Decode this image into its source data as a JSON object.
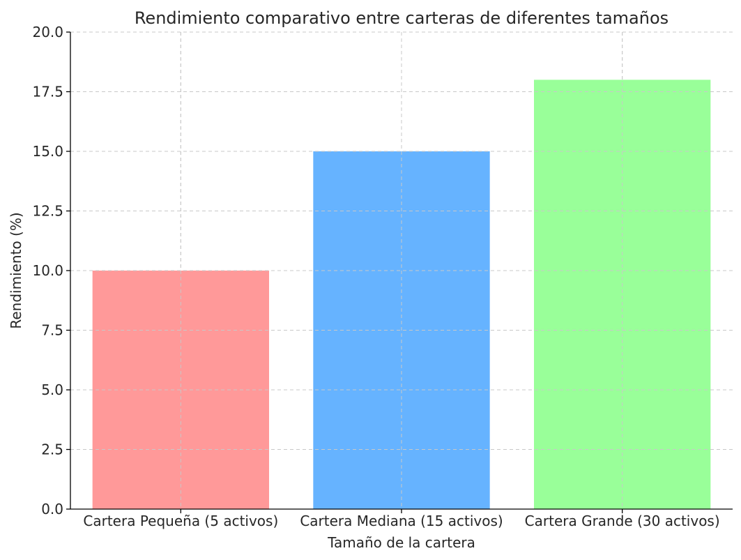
{
  "chart_data": {
    "type": "bar",
    "title": "Rendimiento comparativo entre carteras de diferentes tamaños",
    "xlabel": "Tamaño de la cartera",
    "ylabel": "Rendimiento (%)",
    "categories": [
      "Cartera Pequeña (5 activos)",
      "Cartera Mediana (15 activos)",
      "Cartera Grande (30 activos)"
    ],
    "values": [
      10,
      15,
      18
    ],
    "colors": [
      "#ff9999",
      "#66b3ff",
      "#99ff99"
    ],
    "ylim": [
      0,
      20
    ],
    "yticks": [
      "0.0",
      "2.5",
      "5.0",
      "7.5",
      "10.0",
      "12.5",
      "15.0",
      "17.5",
      "20.0"
    ],
    "grid": true
  }
}
